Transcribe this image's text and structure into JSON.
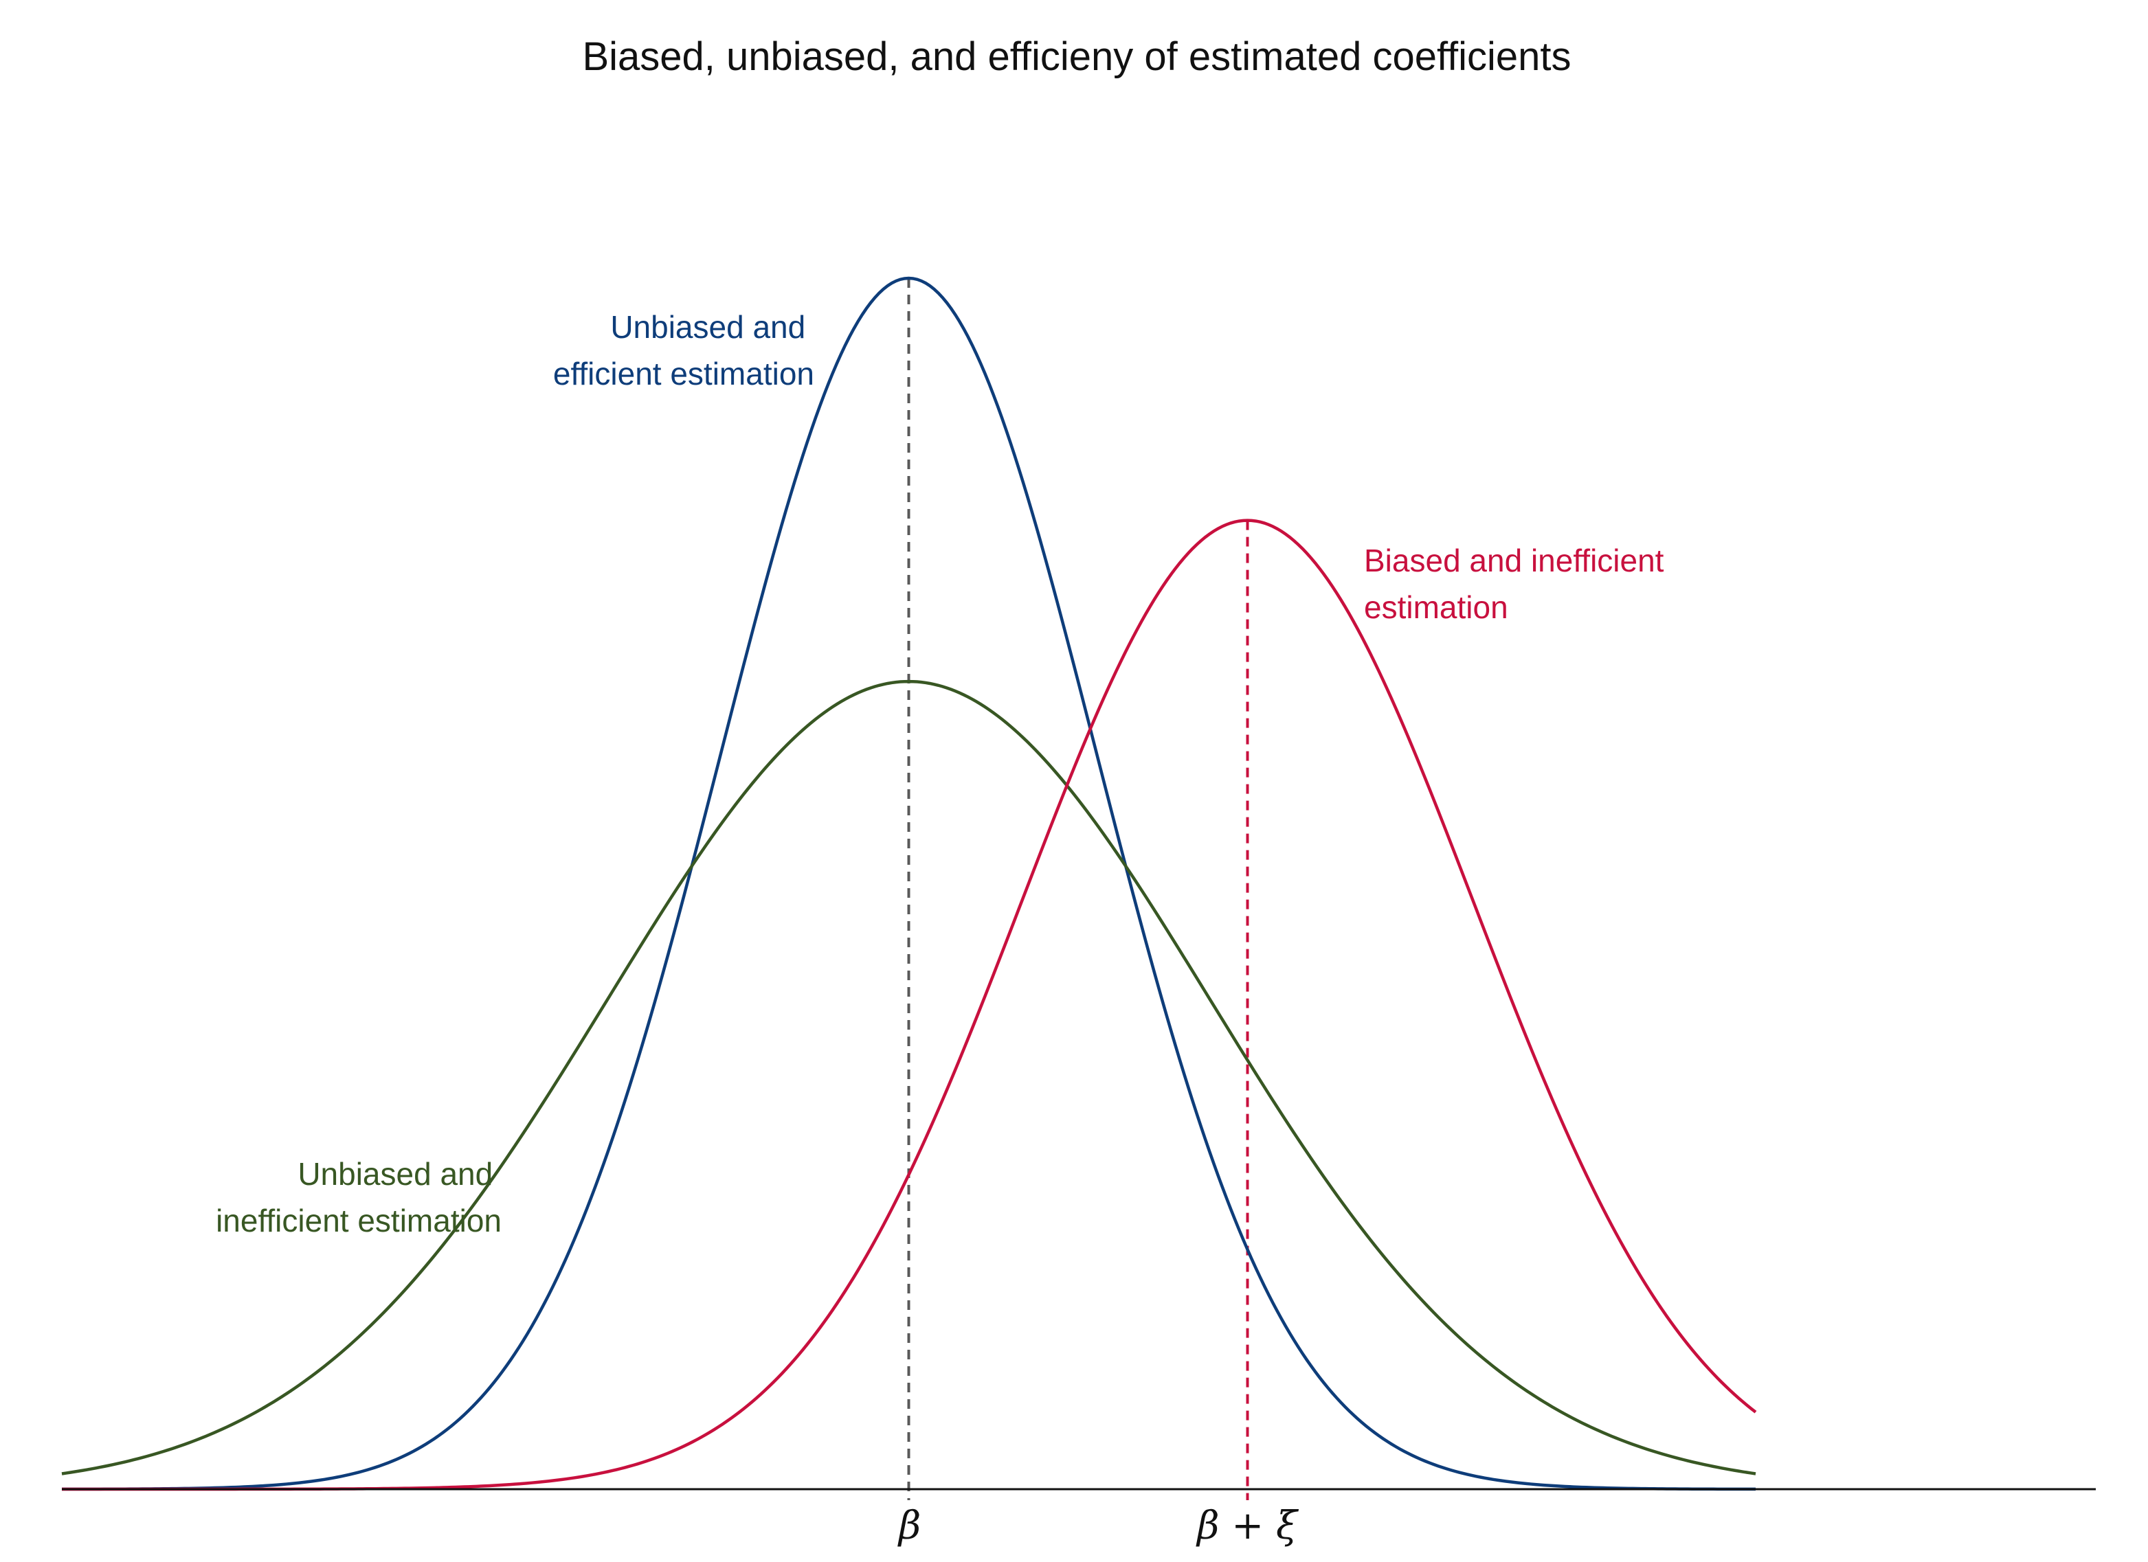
{
  "chart_data": {
    "type": "line",
    "title": "Biased, unbiased, and efficieny of estimated coefficients",
    "xlabel": "",
    "ylabel": "",
    "xlim": [
      -4.5,
      4.5
    ],
    "ylim": [
      0,
      1
    ],
    "grid": false,
    "legend": "none",
    "tick_labels": [
      "β",
      "β + ξ"
    ],
    "tick_positions": [
      0,
      1.8
    ],
    "series": [
      {
        "name": "Unbiased and efficient estimation",
        "label_lines": [
          "Unbiased and",
          "efficient estimation"
        ],
        "distribution": "normal",
        "mean": 0,
        "sd": 1,
        "peak": 1.0,
        "x_range": [
          -4.5,
          4.5
        ],
        "color": "#0e3d7a"
      },
      {
        "name": "Unbiased and inefficient estimation",
        "label_lines": [
          "Unbiased and",
          "inefficient estimation"
        ],
        "distribution": "normal",
        "mean": 0,
        "sd": 1.6,
        "peak": 0.667,
        "x_range": [
          -4.5,
          4.5
        ],
        "color": "#385723"
      },
      {
        "name": "Biased and inefficient estimation",
        "label_lines": [
          "Biased and inefficient",
          "estimation"
        ],
        "distribution": "normal",
        "mean": 1.8,
        "sd": 1.2,
        "peak": 0.8,
        "x_range": [
          -4.5,
          4.5
        ],
        "color": "#c8103e"
      }
    ],
    "reference_lines": [
      {
        "x": 0,
        "style": "dashed",
        "color": "#595959"
      },
      {
        "x": 1.8,
        "style": "dashed",
        "color": "#c8103e"
      }
    ]
  }
}
